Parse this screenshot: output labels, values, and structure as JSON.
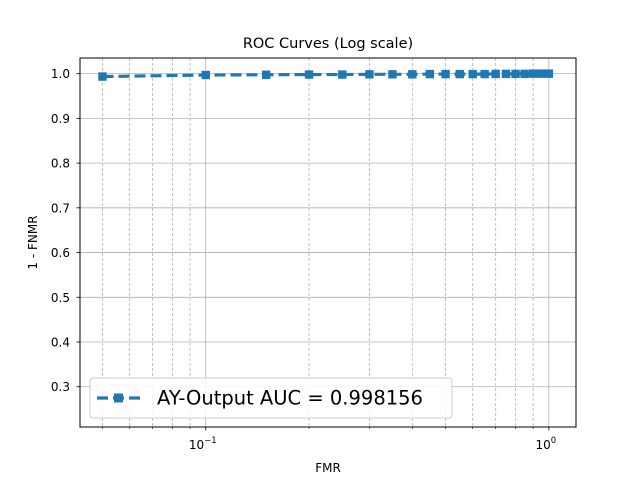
{
  "chart_data": {
    "type": "line",
    "title": "ROC Curves (Log scale)",
    "xlabel": "FMR",
    "ylabel": "1 - FNMR",
    "x_scale": "log",
    "xlim": [
      0.043,
      1.2
    ],
    "ylim": [
      0.21,
      1.035
    ],
    "x_major_ticks": [
      {
        "value": 0.1,
        "base": "10",
        "exp": "−1"
      },
      {
        "value": 1.0,
        "base": "10",
        "exp": "0"
      }
    ],
    "x_minor_gridlines": [
      0.05,
      0.06,
      0.07,
      0.08,
      0.09,
      0.2,
      0.3,
      0.4,
      0.5,
      0.6,
      0.7,
      0.8,
      0.9
    ],
    "y_ticks": [
      "0.3",
      "0.4",
      "0.5",
      "0.6",
      "0.7",
      "0.8",
      "0.9",
      "1.0"
    ],
    "grid": true,
    "legend_position": "bottom-left",
    "series": [
      {
        "name": "AY-Output AUC = 0.998156",
        "color": "#1f77b4",
        "line_style": "dashed",
        "marker": "square",
        "x": [
          0.05,
          0.1,
          0.15,
          0.2,
          0.25,
          0.3,
          0.35,
          0.4,
          0.45,
          0.5,
          0.55,
          0.6,
          0.65,
          0.7,
          0.75,
          0.8,
          0.85,
          0.9,
          0.95,
          1.0
        ],
        "y": [
          0.9935,
          0.997,
          0.9975,
          0.998,
          0.998,
          0.9985,
          0.9985,
          0.9985,
          0.999,
          0.999,
          0.999,
          0.999,
          0.999,
          0.9995,
          0.9995,
          0.9995,
          0.9995,
          1.0,
          1.0,
          1.0
        ]
      }
    ]
  }
}
